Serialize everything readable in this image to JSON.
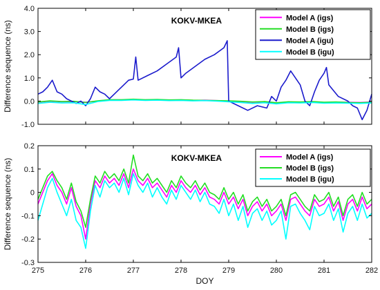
{
  "chart_data": [
    {
      "type": "line",
      "title": "KOKV-MKEA",
      "ylabel": "Difference sequence (ns)",
      "xlabel": "",
      "xlim": [
        275,
        282
      ],
      "ylim": [
        -1.0,
        4.0
      ],
      "xticks": [
        275,
        276,
        277,
        278,
        279,
        280,
        281,
        282
      ],
      "yticks": [
        "-1.0",
        "0.0",
        "1.0",
        "2.0",
        "3.0",
        "4.0"
      ],
      "yticks_values": [
        -1,
        0,
        1,
        2,
        3,
        4
      ],
      "grid": false,
      "legend": "top-right",
      "series": [
        {
          "name": "Model A (igs)",
          "color": "#ff00ff",
          "x": [
            275.0,
            275.25,
            275.5,
            275.75,
            276.0,
            276.25,
            276.5,
            276.75,
            277.0,
            277.25,
            277.5,
            277.75,
            278.0,
            278.25,
            278.5,
            278.75,
            279.0,
            279.25,
            279.5,
            279.75,
            280.0,
            280.25,
            280.5,
            280.75,
            281.0,
            281.25,
            281.5,
            281.75,
            282.0
          ],
          "values": [
            -0.05,
            0.0,
            -0.03,
            -0.02,
            -0.05,
            0.0,
            0.05,
            0.05,
            0.07,
            0.05,
            0.06,
            0.04,
            0.05,
            0.03,
            0.04,
            0.02,
            0.0,
            -0.02,
            -0.05,
            -0.03,
            -0.08,
            -0.04,
            -0.05,
            -0.03,
            -0.06,
            -0.05,
            -0.05,
            -0.06,
            -0.04
          ]
        },
        {
          "name": "Model B (igs)",
          "color": "#22dd22",
          "x": [
            275.0,
            275.25,
            275.5,
            275.75,
            276.0,
            276.25,
            276.5,
            276.75,
            277.0,
            277.25,
            277.5,
            277.75,
            278.0,
            278.25,
            278.5,
            278.75,
            279.0,
            279.25,
            279.5,
            279.75,
            280.0,
            280.25,
            280.5,
            280.75,
            281.0,
            281.25,
            281.5,
            281.75,
            282.0
          ],
          "values": [
            -0.04,
            0.01,
            -0.02,
            -0.01,
            -0.06,
            0.01,
            0.06,
            0.06,
            0.08,
            0.06,
            0.07,
            0.05,
            0.06,
            0.04,
            0.03,
            0.02,
            0.01,
            -0.01,
            -0.04,
            -0.02,
            -0.07,
            -0.03,
            -0.04,
            -0.02,
            -0.05,
            -0.04,
            -0.06,
            -0.07,
            -0.05
          ]
        },
        {
          "name": "Model A (igu)",
          "color": "#1a1acc",
          "x": [
            275.0,
            275.1,
            275.2,
            275.3,
            275.4,
            275.5,
            275.6,
            275.7,
            275.8,
            275.9,
            276.0,
            276.1,
            276.2,
            276.3,
            276.4,
            276.5,
            276.6,
            276.7,
            276.8,
            276.9,
            277.0,
            277.05,
            277.1,
            277.3,
            277.5,
            277.7,
            277.9,
            277.95,
            278.0,
            278.05,
            278.1,
            278.3,
            278.5,
            278.7,
            278.9,
            278.97,
            279.0,
            279.05,
            279.2,
            279.4,
            279.6,
            279.8,
            279.9,
            280.0,
            280.1,
            280.2,
            280.3,
            280.4,
            280.5,
            280.6,
            280.7,
            280.8,
            280.9,
            281.0,
            281.05,
            281.1,
            281.3,
            281.5,
            281.6,
            281.7,
            281.8,
            281.9,
            282.0
          ],
          "values": [
            0.3,
            0.4,
            0.6,
            0.9,
            0.4,
            0.3,
            0.1,
            0.0,
            -0.1,
            0.0,
            -0.2,
            0.1,
            0.6,
            0.4,
            0.3,
            0.1,
            0.3,
            0.5,
            0.7,
            0.9,
            0.95,
            1.9,
            0.9,
            1.1,
            1.3,
            1.6,
            1.9,
            2.3,
            1.0,
            1.1,
            1.2,
            1.5,
            1.8,
            2.0,
            2.3,
            2.6,
            0.0,
            -0.05,
            -0.2,
            -0.4,
            -0.2,
            -0.3,
            0.2,
            0.0,
            0.6,
            0.9,
            1.3,
            1.0,
            0.7,
            0.0,
            -0.2,
            0.4,
            0.9,
            1.2,
            1.45,
            0.7,
            0.2,
            0.0,
            -0.2,
            -0.3,
            -0.8,
            -0.4,
            0.3
          ]
        },
        {
          "name": "Model B (igu)",
          "color": "#00ffff",
          "x": [
            275.0,
            275.25,
            275.5,
            275.75,
            276.0,
            276.25,
            276.5,
            276.75,
            277.0,
            277.25,
            277.5,
            277.75,
            278.0,
            278.25,
            278.5,
            278.75,
            279.0,
            279.25,
            279.5,
            279.75,
            280.0,
            280.25,
            280.5,
            280.75,
            281.0,
            281.25,
            281.5,
            281.75,
            282.0
          ],
          "values": [
            -0.1,
            -0.05,
            -0.08,
            -0.07,
            -0.15,
            -0.02,
            0.03,
            0.03,
            0.05,
            0.03,
            0.04,
            0.02,
            0.03,
            0.01,
            0.02,
            0.0,
            -0.03,
            -0.06,
            -0.1,
            -0.07,
            -0.12,
            -0.07,
            -0.08,
            -0.06,
            -0.09,
            -0.08,
            -0.09,
            -0.1,
            -0.08
          ]
        }
      ]
    },
    {
      "type": "line",
      "title": "KOKV-MKEA",
      "ylabel": "Difference sequence (ns)",
      "xlabel": "DOY",
      "xlim": [
        275,
        282
      ],
      "ylim": [
        -0.3,
        0.2
      ],
      "xticks": [
        275,
        276,
        277,
        278,
        279,
        280,
        281,
        282
      ],
      "yticks": [
        "-0.3",
        "-0.2",
        "-0.1",
        "0",
        "0.1",
        "0.2"
      ],
      "yticks_values": [
        -0.3,
        -0.2,
        -0.1,
        0,
        0.1,
        0.2
      ],
      "grid": false,
      "legend": "top-right",
      "series": [
        {
          "name": "Model A (igs)",
          "color": "#ff00ff",
          "x": [
            275.0,
            275.1,
            275.2,
            275.3,
            275.4,
            275.5,
            275.6,
            275.7,
            275.8,
            275.9,
            276.0,
            276.1,
            276.2,
            276.3,
            276.4,
            276.5,
            276.6,
            276.7,
            276.8,
            276.9,
            277.0,
            277.1,
            277.2,
            277.3,
            277.4,
            277.5,
            277.6,
            277.7,
            277.8,
            277.9,
            278.0,
            278.1,
            278.2,
            278.3,
            278.4,
            278.5,
            278.6,
            278.7,
            278.8,
            278.9,
            279.0,
            279.1,
            279.2,
            279.3,
            279.4,
            279.5,
            279.6,
            279.7,
            279.8,
            279.9,
            280.0,
            280.1,
            280.2,
            280.3,
            280.4,
            280.5,
            280.6,
            280.7,
            280.8,
            280.9,
            281.0,
            281.1,
            281.2,
            281.3,
            281.4,
            281.5,
            281.6,
            281.7,
            281.8,
            281.9,
            282.0
          ],
          "values": [
            -0.05,
            0.0,
            0.05,
            0.08,
            0.03,
            0.0,
            -0.05,
            0.02,
            -0.06,
            -0.1,
            -0.2,
            -0.05,
            0.05,
            0.02,
            0.07,
            0.04,
            0.06,
            0.03,
            0.08,
            0.02,
            0.1,
            0.05,
            0.03,
            0.06,
            0.02,
            0.04,
            0.01,
            -0.02,
            0.03,
            0.0,
            0.05,
            0.02,
            0.0,
            0.03,
            -0.01,
            0.02,
            -0.02,
            -0.03,
            -0.05,
            0.0,
            -0.05,
            -0.02,
            -0.07,
            -0.03,
            -0.1,
            -0.06,
            -0.04,
            -0.08,
            -0.05,
            -0.1,
            -0.08,
            -0.05,
            -0.12,
            -0.03,
            -0.02,
            -0.05,
            -0.08,
            -0.1,
            -0.03,
            -0.06,
            -0.05,
            -0.02,
            -0.08,
            -0.04,
            -0.12,
            -0.05,
            -0.03,
            -0.08,
            -0.02,
            -0.07,
            -0.05
          ]
        },
        {
          "name": "Model B (igs)",
          "color": "#22dd22",
          "x": [
            275.0,
            275.1,
            275.2,
            275.3,
            275.4,
            275.5,
            275.6,
            275.7,
            275.8,
            275.9,
            276.0,
            276.1,
            276.2,
            276.3,
            276.4,
            276.5,
            276.6,
            276.7,
            276.8,
            276.9,
            277.0,
            277.1,
            277.2,
            277.3,
            277.4,
            277.5,
            277.6,
            277.7,
            277.8,
            277.9,
            278.0,
            278.1,
            278.2,
            278.3,
            278.4,
            278.5,
            278.6,
            278.7,
            278.8,
            278.9,
            279.0,
            279.1,
            279.2,
            279.3,
            279.4,
            279.5,
            279.6,
            279.7,
            279.8,
            279.9,
            280.0,
            280.1,
            280.2,
            280.3,
            280.4,
            280.5,
            280.6,
            280.7,
            280.8,
            280.9,
            281.0,
            281.1,
            281.2,
            281.3,
            281.4,
            281.5,
            281.6,
            281.7,
            281.8,
            281.9,
            282.0
          ],
          "values": [
            -0.03,
            0.02,
            0.07,
            0.09,
            0.05,
            0.02,
            -0.03,
            0.04,
            -0.04,
            -0.08,
            -0.15,
            -0.03,
            0.07,
            0.04,
            0.09,
            0.06,
            0.08,
            0.05,
            0.1,
            0.04,
            0.16,
            0.07,
            0.05,
            0.08,
            0.04,
            0.06,
            0.03,
            0.0,
            0.05,
            0.02,
            0.07,
            0.04,
            0.02,
            0.05,
            0.01,
            0.04,
            0.0,
            -0.01,
            -0.03,
            0.02,
            -0.03,
            0.0,
            -0.05,
            -0.01,
            -0.08,
            -0.04,
            -0.02,
            -0.06,
            -0.03,
            -0.08,
            -0.06,
            -0.03,
            -0.1,
            -0.01,
            0.0,
            -0.03,
            -0.06,
            -0.08,
            -0.01,
            -0.04,
            -0.03,
            0.0,
            -0.06,
            -0.02,
            -0.1,
            -0.03,
            -0.01,
            -0.06,
            0.0,
            -0.05,
            -0.03
          ]
        },
        {
          "name": "Model B (igu)",
          "color": "#00ffff",
          "x": [
            275.0,
            275.1,
            275.2,
            275.3,
            275.4,
            275.5,
            275.6,
            275.7,
            275.8,
            275.9,
            276.0,
            276.1,
            276.2,
            276.3,
            276.4,
            276.5,
            276.6,
            276.7,
            276.8,
            276.9,
            277.0,
            277.1,
            277.2,
            277.3,
            277.4,
            277.5,
            277.6,
            277.7,
            277.8,
            277.9,
            278.0,
            278.1,
            278.2,
            278.3,
            278.4,
            278.5,
            278.6,
            278.7,
            278.8,
            278.9,
            279.0,
            279.1,
            279.2,
            279.3,
            279.4,
            279.5,
            279.6,
            279.7,
            279.8,
            279.9,
            280.0,
            280.1,
            280.2,
            280.3,
            280.4,
            280.5,
            280.6,
            280.7,
            280.8,
            280.9,
            281.0,
            281.1,
            281.2,
            281.3,
            281.4,
            281.5,
            281.6,
            281.7,
            281.8,
            281.9,
            282.0
          ],
          "values": [
            -0.12,
            -0.05,
            0.02,
            0.06,
            0.0,
            -0.05,
            -0.1,
            -0.03,
            -0.12,
            -0.15,
            -0.24,
            -0.08,
            0.03,
            -0.02,
            0.05,
            0.02,
            0.04,
            0.0,
            0.06,
            -0.01,
            0.08,
            0.03,
            0.0,
            0.04,
            -0.02,
            0.02,
            -0.02,
            -0.05,
            0.01,
            -0.03,
            0.03,
            0.0,
            -0.03,
            0.01,
            -0.04,
            0.0,
            -0.05,
            -0.06,
            -0.09,
            -0.03,
            -0.1,
            -0.05,
            -0.12,
            -0.06,
            -0.15,
            -0.09,
            -0.07,
            -0.12,
            -0.08,
            -0.14,
            -0.12,
            -0.08,
            -0.2,
            -0.06,
            -0.05,
            -0.09,
            -0.12,
            -0.16,
            -0.06,
            -0.1,
            -0.09,
            -0.05,
            -0.12,
            -0.07,
            -0.17,
            -0.09,
            -0.06,
            -0.12,
            -0.05,
            -0.11,
            -0.09
          ]
        }
      ]
    }
  ]
}
